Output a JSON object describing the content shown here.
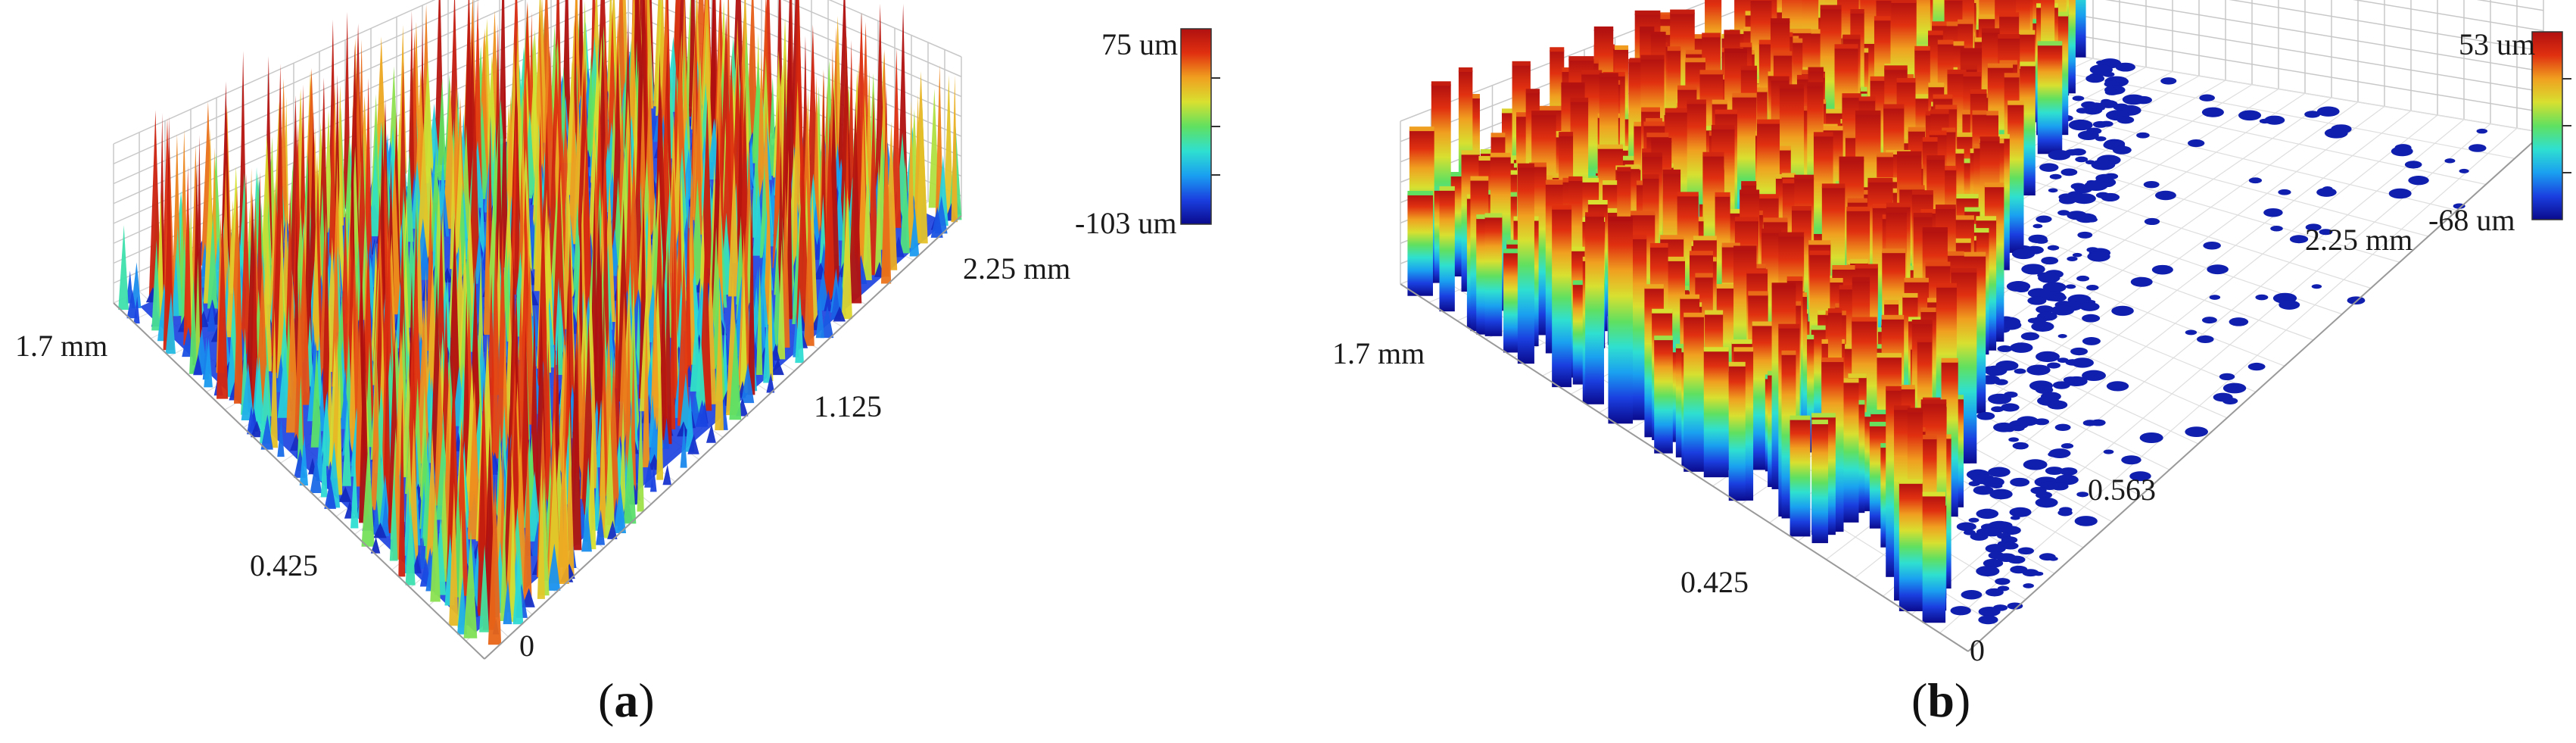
{
  "panels": [
    {
      "id": "a",
      "caption_letter": "a",
      "colorbar": {
        "max_label": "75 um",
        "min_label": "-103 um"
      },
      "axis_labels": {
        "y_extent": "1.7 mm",
        "x_extent": "2.25 mm",
        "x_mid": "1.125",
        "y_mid": "0.425",
        "origin": "0"
      },
      "surface": "dense needle-like peaks over the full area"
    },
    {
      "id": "b",
      "caption_letter": "b",
      "colorbar": {
        "max_label": "53 um",
        "min_label": "-68 um"
      },
      "axis_labels": {
        "y_extent": "1.7 mm",
        "x_extent": "2.25 mm",
        "x_mid": "0.563",
        "y_mid": "0.425",
        "origin": "0"
      },
      "surface": "coarse plateau-like surface with scattered islands"
    }
  ],
  "colors": {
    "colormap": [
      "#0a0a8c",
      "#1a3fe0",
      "#1aa0f0",
      "#2fe0d0",
      "#60e060",
      "#d8e030",
      "#f0a020",
      "#e03010",
      "#b01010"
    ],
    "grid": "#c8c8c8"
  }
}
